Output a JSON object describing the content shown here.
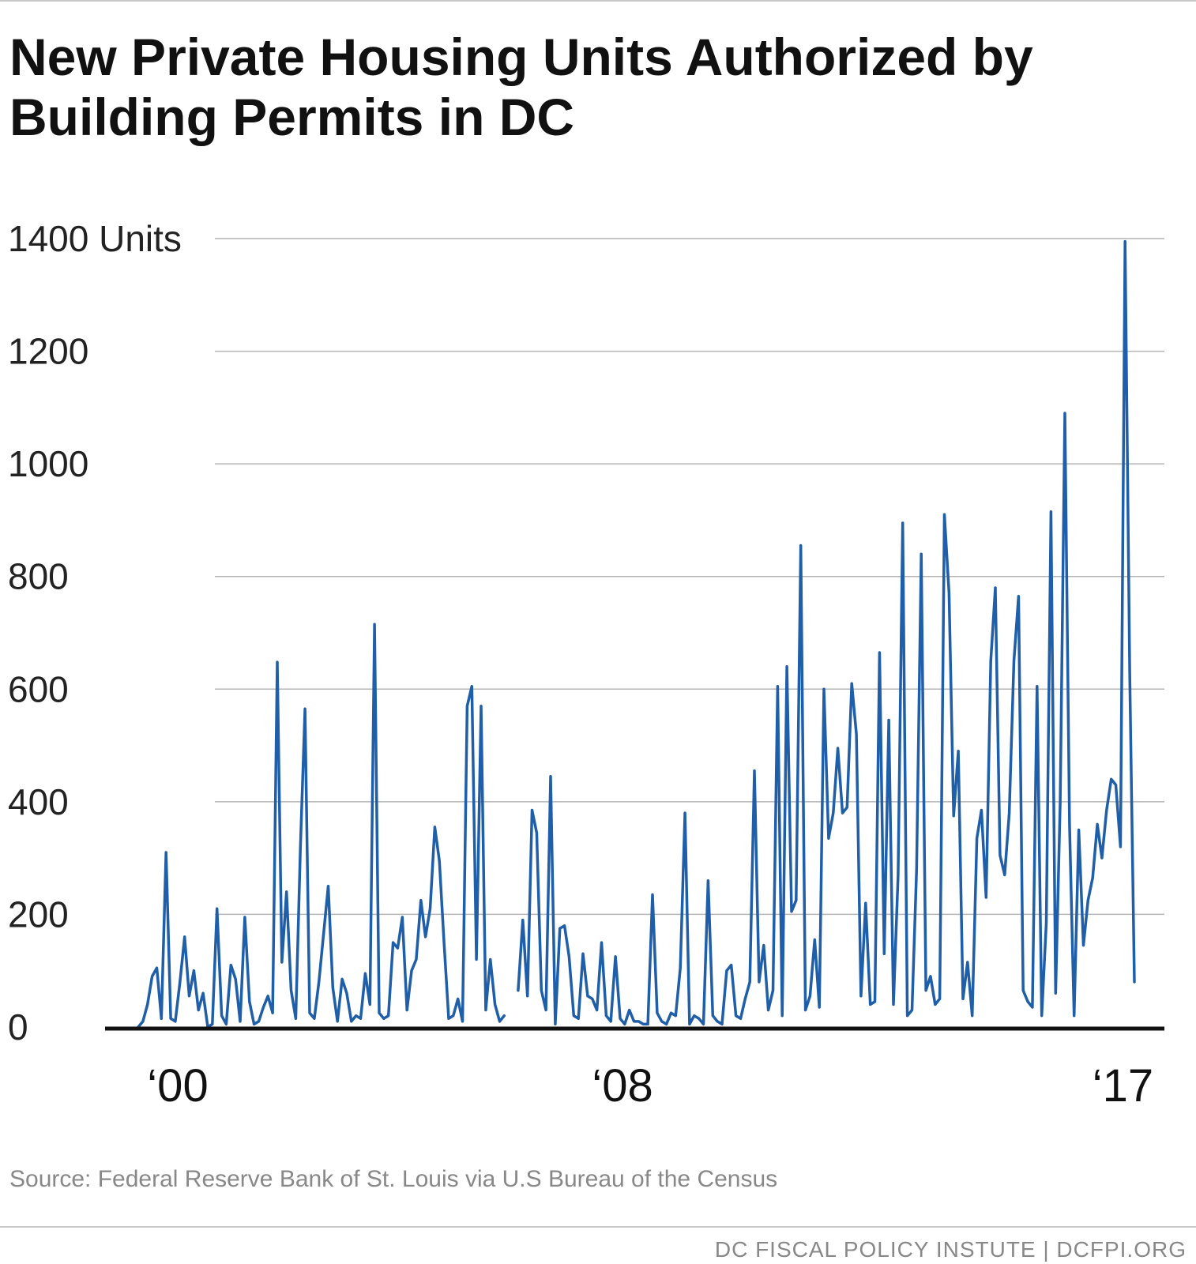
{
  "title": "New Private Housing Units Authorized by Building Permits in DC",
  "source": "Source: Federal Reserve Bank of St. Louis via U.S Bureau of the Census",
  "footer": "DC FISCAL POLICY INSTUTE  |  DCFPI.ORG",
  "colors": {
    "line": "#1f5ea8",
    "grid": "#b4b4b4",
    "axis": "#111111"
  },
  "chart_data": {
    "type": "line",
    "title": "New Private Housing Units Authorized by Building Permits in DC",
    "xlabel": "",
    "ylabel": "Units",
    "ylim": [
      0,
      1400
    ],
    "grid": true,
    "y_ticks": [
      {
        "value": 0,
        "label": "0"
      },
      {
        "value": 200,
        "label": "200"
      },
      {
        "value": 400,
        "label": "400"
      },
      {
        "value": 600,
        "label": "600"
      },
      {
        "value": 800,
        "label": "800"
      },
      {
        "value": 1000,
        "label": "1000"
      },
      {
        "value": 1200,
        "label": "1200"
      },
      {
        "value": 1400,
        "label": "1400 Units"
      }
    ],
    "x_ticks": [
      {
        "value": 0,
        "label": "‘00"
      },
      {
        "value": 96,
        "label": "‘08"
      },
      {
        "value": 204,
        "label": "‘17"
      }
    ],
    "series": [
      {
        "values": [
          0,
          10,
          40,
          90,
          105,
          15,
          310,
          15,
          10,
          80,
          160,
          55,
          100,
          30,
          60,
          0,
          5,
          210,
          20,
          5,
          110,
          85,
          10,
          195,
          45,
          5,
          10,
          35,
          55,
          25,
          648,
          115,
          240,
          65,
          15,
          320,
          565,
          25,
          15,
          80,
          165,
          250,
          70,
          10,
          85,
          60,
          10,
          20,
          15,
          95,
          40,
          715,
          25,
          15,
          20,
          150,
          140,
          195,
          30,
          100,
          120,
          225,
          160,
          210,
          355,
          295,
          150,
          15,
          20,
          50,
          10,
          570,
          605,
          120,
          570,
          30,
          120,
          40,
          10,
          20,
          null,
          null,
          65,
          190,
          55,
          385,
          345,
          65,
          30,
          445,
          5,
          175,
          180,
          125,
          20,
          15,
          130,
          55,
          50,
          30,
          150,
          20,
          10,
          125,
          15,
          5,
          30,
          10,
          10,
          5,
          5,
          235,
          25,
          10,
          5,
          25,
          20,
          105,
          380,
          5,
          20,
          15,
          5,
          260,
          20,
          10,
          5,
          100,
          110,
          20,
          15,
          50,
          80,
          455,
          80,
          145,
          30,
          65,
          605,
          20,
          640,
          205,
          225,
          855,
          30,
          55,
          155,
          35,
          600,
          335,
          380,
          495,
          380,
          390,
          610,
          520,
          55,
          220,
          40,
          45,
          665,
          130,
          545,
          40,
          270,
          895,
          20,
          30,
          280,
          840,
          65,
          90,
          40,
          50,
          910,
          770,
          375,
          490,
          50,
          115,
          20,
          335,
          385,
          230,
          650,
          780,
          305,
          270,
          380,
          650,
          765,
          65,
          45,
          35,
          605,
          20,
          185,
          915,
          60,
          400,
          1090,
          360,
          20,
          350,
          145,
          225,
          265,
          360,
          300,
          385,
          440,
          430,
          320,
          1395,
          630,
          80
        ]
      }
    ]
  }
}
